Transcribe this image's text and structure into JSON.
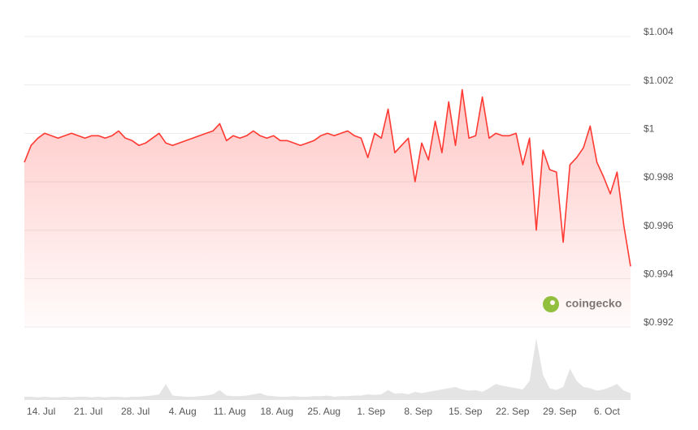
{
  "chart_data": {
    "type": "line",
    "categories": [
      null,
      null,
      "14. Jul",
      null,
      null,
      null,
      null,
      null,
      null,
      "21. Jul",
      null,
      null,
      null,
      null,
      null,
      null,
      "28. Jul",
      null,
      null,
      null,
      null,
      null,
      null,
      "4. Aug",
      null,
      null,
      null,
      null,
      null,
      null,
      "11. Aug",
      null,
      null,
      null,
      null,
      null,
      null,
      "18. Aug",
      null,
      null,
      null,
      null,
      null,
      null,
      "25. Aug",
      null,
      null,
      null,
      null,
      null,
      null,
      "1. Sep",
      null,
      null,
      null,
      null,
      null,
      null,
      "8. Sep",
      null,
      null,
      null,
      null,
      null,
      null,
      "15. Sep",
      null,
      null,
      null,
      null,
      null,
      null,
      "22. Sep",
      null,
      null,
      null,
      null,
      null,
      null,
      "29. Sep",
      null,
      null,
      null,
      null,
      null,
      null,
      "6. Oct",
      null,
      null,
      null,
      null
    ],
    "series": [
      {
        "color": "#ff3a33",
        "values": [
          0.9988,
          0.9995,
          0.9998,
          1.0,
          0.9999,
          0.9998,
          0.9999,
          1.0,
          0.9999,
          0.9998,
          0.9999,
          0.9999,
          0.9998,
          0.9999,
          1.0001,
          0.9998,
          0.9997,
          0.9995,
          0.9996,
          0.9998,
          1.0,
          0.9996,
          0.9995,
          0.9996,
          0.9997,
          0.9998,
          0.9999,
          1.0,
          1.0001,
          1.0004,
          0.9997,
          0.9999,
          0.9998,
          0.9999,
          1.0001,
          0.9999,
          0.9998,
          0.9999,
          0.9997,
          0.9997,
          0.9996,
          0.9995,
          0.9996,
          0.9997,
          0.9999,
          1.0,
          0.9999,
          1.0,
          1.0001,
          0.9999,
          0.9998,
          0.999,
          1.0,
          0.9998,
          1.001,
          0.9992,
          0.9995,
          0.9998,
          0.998,
          0.9996,
          0.9989,
          1.0005,
          0.9992,
          1.0013,
          0.9995,
          1.0018,
          0.9998,
          0.9999,
          1.0015,
          0.9998,
          1.0,
          0.9999,
          0.9999,
          1.0,
          0.9987,
          0.9998,
          0.996,
          0.9993,
          0.9985,
          0.9984,
          0.9955,
          0.9987,
          0.999,
          0.9994,
          1.0003,
          0.9988,
          0.9982,
          0.9975,
          0.9984,
          0.9962,
          0.9945
        ]
      },
      {
        "color": "#e4e4e4",
        "axis": "y2",
        "values": [
          4,
          4,
          3,
          4,
          3,
          3,
          4,
          3,
          4,
          4,
          3,
          4,
          3,
          4,
          4,
          3,
          4,
          4,
          5,
          6,
          8,
          25,
          6,
          5,
          4,
          4,
          5,
          6,
          8,
          15,
          6,
          5,
          5,
          6,
          8,
          10,
          6,
          5,
          4,
          4,
          5,
          4,
          4,
          5,
          5,
          6,
          4,
          5,
          5,
          6,
          6,
          8,
          7,
          8,
          15,
          9,
          10,
          8,
          12,
          10,
          12,
          14,
          16,
          18,
          20,
          16,
          14,
          15,
          12,
          18,
          25,
          22,
          20,
          18,
          16,
          30,
          100,
          40,
          18,
          15,
          20,
          50,
          30,
          20,
          18,
          14,
          16,
          20,
          25,
          14,
          10
        ]
      }
    ],
    "ylim": [
      0.992,
      1.004
    ],
    "yticks": [
      {
        "value": 0.992,
        "label": "$0.992"
      },
      {
        "value": 0.994,
        "label": "$0.994"
      },
      {
        "value": 0.996,
        "label": "$0.996"
      },
      {
        "value": 0.998,
        "label": "$0.998"
      },
      {
        "value": 1,
        "label": "$1"
      },
      {
        "value": 1.002,
        "label": "$1.002"
      },
      {
        "value": 1.004,
        "label": "$1.004"
      }
    ],
    "y2lim": [
      0,
      100
    ],
    "grid": true,
    "watermark": "coingecko"
  }
}
